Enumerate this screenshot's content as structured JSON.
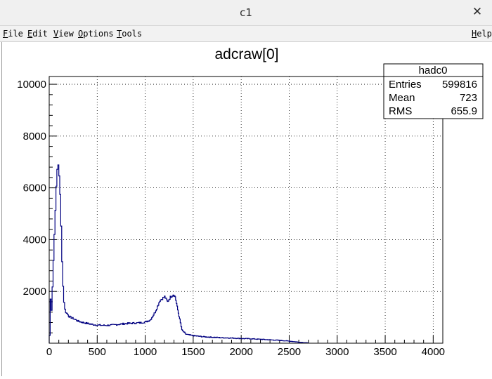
{
  "window": {
    "title": "c1"
  },
  "menu": {
    "file": {
      "key": "F",
      "rest": "ile"
    },
    "edit": {
      "key": "E",
      "rest": "dit"
    },
    "view": {
      "key": "V",
      "rest": "iew"
    },
    "options": {
      "key": "O",
      "rest": "ptions"
    },
    "tools": {
      "key": "T",
      "rest": "ools"
    },
    "help": {
      "key": "H",
      "rest": "elp"
    }
  },
  "stats": {
    "name": "hadc0",
    "rows": [
      {
        "label": "Entries",
        "value": "599816"
      },
      {
        "label": "Mean",
        "value": "723"
      },
      {
        "label": "RMS",
        "value": "655.9"
      }
    ]
  },
  "colors": {
    "histogram_line": "#000080",
    "frame": "#000000"
  },
  "chart_data": {
    "type": "line",
    "title": "adcraw[0]",
    "xlabel": "",
    "ylabel": "",
    "xlim": [
      0,
      4100
    ],
    "ylim": [
      0,
      10300
    ],
    "grid": true,
    "x_ticks": [
      "0",
      "500",
      "1000",
      "1500",
      "2000",
      "2500",
      "3000",
      "3500",
      "4000"
    ],
    "y_ticks": [
      "2000",
      "4000",
      "6000",
      "8000",
      "10000"
    ],
    "series": [
      {
        "x": [
          0,
          10,
          20,
          30,
          40,
          50,
          60,
          70,
          80,
          90,
          100,
          110,
          120,
          130,
          140,
          150,
          160,
          170,
          180,
          190,
          200,
          220,
          250,
          300,
          350,
          400,
          450,
          500,
          550,
          600,
          650,
          700,
          750,
          800,
          850,
          900,
          950,
          1000,
          1050,
          1100,
          1150,
          1200,
          1230,
          1260,
          1290,
          1310,
          1330,
          1350,
          1380,
          1420,
          1450,
          1500,
          1600,
          1700,
          1800,
          1900,
          2000,
          2100,
          2200,
          2300,
          2400,
          2500,
          2600,
          2700
        ],
        "values": [
          300,
          1700,
          1300,
          2200,
          3200,
          4200,
          5200,
          6000,
          6700,
          6900,
          6500,
          5700,
          4500,
          3200,
          2200,
          1600,
          1300,
          1200,
          1150,
          1100,
          1050,
          1000,
          950,
          850,
          800,
          760,
          720,
          700,
          690,
          690,
          700,
          720,
          740,
          760,
          770,
          780,
          790,
          820,
          900,
          1200,
          1650,
          1800,
          1600,
          1780,
          1880,
          1800,
          1400,
          1050,
          500,
          350,
          320,
          290,
          250,
          230,
          210,
          200,
          180,
          170,
          150,
          130,
          110,
          80,
          40,
          10
        ]
      }
    ]
  }
}
